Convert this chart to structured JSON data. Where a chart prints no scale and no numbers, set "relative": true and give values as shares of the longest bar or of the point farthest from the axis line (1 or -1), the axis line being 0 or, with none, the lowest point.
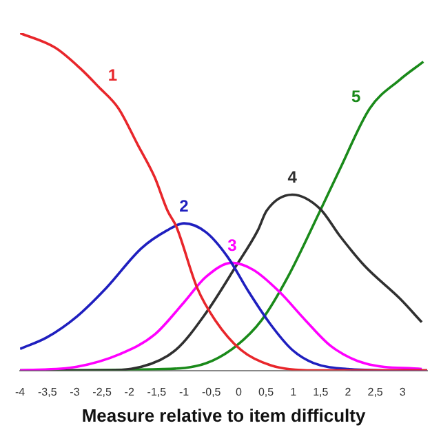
{
  "chart_data": {
    "type": "line",
    "relative": true,
    "xlabel": "Measure relative to item difficulty",
    "xlim": [
      -4,
      3.45
    ],
    "xticks": [
      -4,
      {
        "value": -3.5,
        "label": "-3,5"
      },
      -3,
      {
        "value": -2.5,
        "label": "-2,5"
      },
      -2,
      {
        "value": -1.5,
        "label": "-1,5"
      },
      -1,
      {
        "value": -0.5,
        "label": "-0,5"
      },
      0,
      {
        "value": 0.5,
        "label": "0,5"
      },
      1,
      {
        "value": 1.5,
        "label": "1,5"
      },
      2,
      {
        "value": 2.5,
        "label": "2,5"
      },
      3
    ],
    "grid": false,
    "legend": false,
    "marker": "none",
    "line_style": "solid",
    "series": [
      {
        "name": "1",
        "color": "#e8262b",
        "x": [
          -4,
          -3.36,
          -2.89,
          -2.56,
          -2.2,
          -1.85,
          -1.54,
          -1.3,
          -1.14,
          -0.76,
          -0.43,
          0.04,
          0.59,
          1.37,
          3.45
        ],
        "values": [
          1,
          0.957,
          0.894,
          0.84,
          0.777,
          0.67,
          0.574,
          0.473,
          0.426,
          0.245,
          0.149,
          0.061,
          0.015,
          0,
          0
        ]
      },
      {
        "name": "2",
        "color": "#1f1fbf",
        "x": [
          -4,
          -3.51,
          -2.96,
          -2.42,
          -1.78,
          -1.31,
          -1.0,
          -0.6,
          -0.2,
          0.18,
          0.59,
          0.98,
          1.37,
          2.0,
          2.95,
          3.45
        ],
        "values": [
          0.064,
          0.098,
          0.16,
          0.245,
          0.362,
          0.415,
          0.436,
          0.41,
          0.336,
          0.234,
          0.135,
          0.061,
          0.022,
          0.004,
          0,
          0
        ]
      },
      {
        "name": "3",
        "color": "#ff00ff",
        "x": [
          -4,
          -2.96,
          -2.18,
          -1.54,
          -1.0,
          -0.6,
          -0.12,
          0.27,
          0.74,
          1.22,
          1.69,
          2.31,
          3.35
        ],
        "values": [
          0,
          0.011,
          0.048,
          0.106,
          0.202,
          0.277,
          0.319,
          0.298,
          0.234,
          0.149,
          0.072,
          0.021,
          0.004
        ]
      },
      {
        "name": "4",
        "color": "#303030",
        "x": [
          -4,
          -2.57,
          -1.78,
          -1.15,
          -0.6,
          -0.05,
          0.35,
          0.51,
          0.98,
          1.49,
          1.85,
          2.31,
          2.95,
          3.35
        ],
        "values": [
          0,
          0,
          0.011,
          0.061,
          0.17,
          0.309,
          0.415,
          0.473,
          0.521,
          0.479,
          0.399,
          0.309,
          0.213,
          0.143
        ]
      },
      {
        "name": "5",
        "color": "#1a8a1a",
        "x": [
          -4,
          -1.38,
          -0.6,
          -0.05,
          0.42,
          0.9,
          1.49,
          1.85,
          2.4,
          2.95,
          3.38
        ],
        "values": [
          0,
          0.004,
          0.021,
          0.072,
          0.149,
          0.277,
          0.473,
          0.596,
          0.777,
          0.862,
          0.915
        ]
      }
    ]
  }
}
